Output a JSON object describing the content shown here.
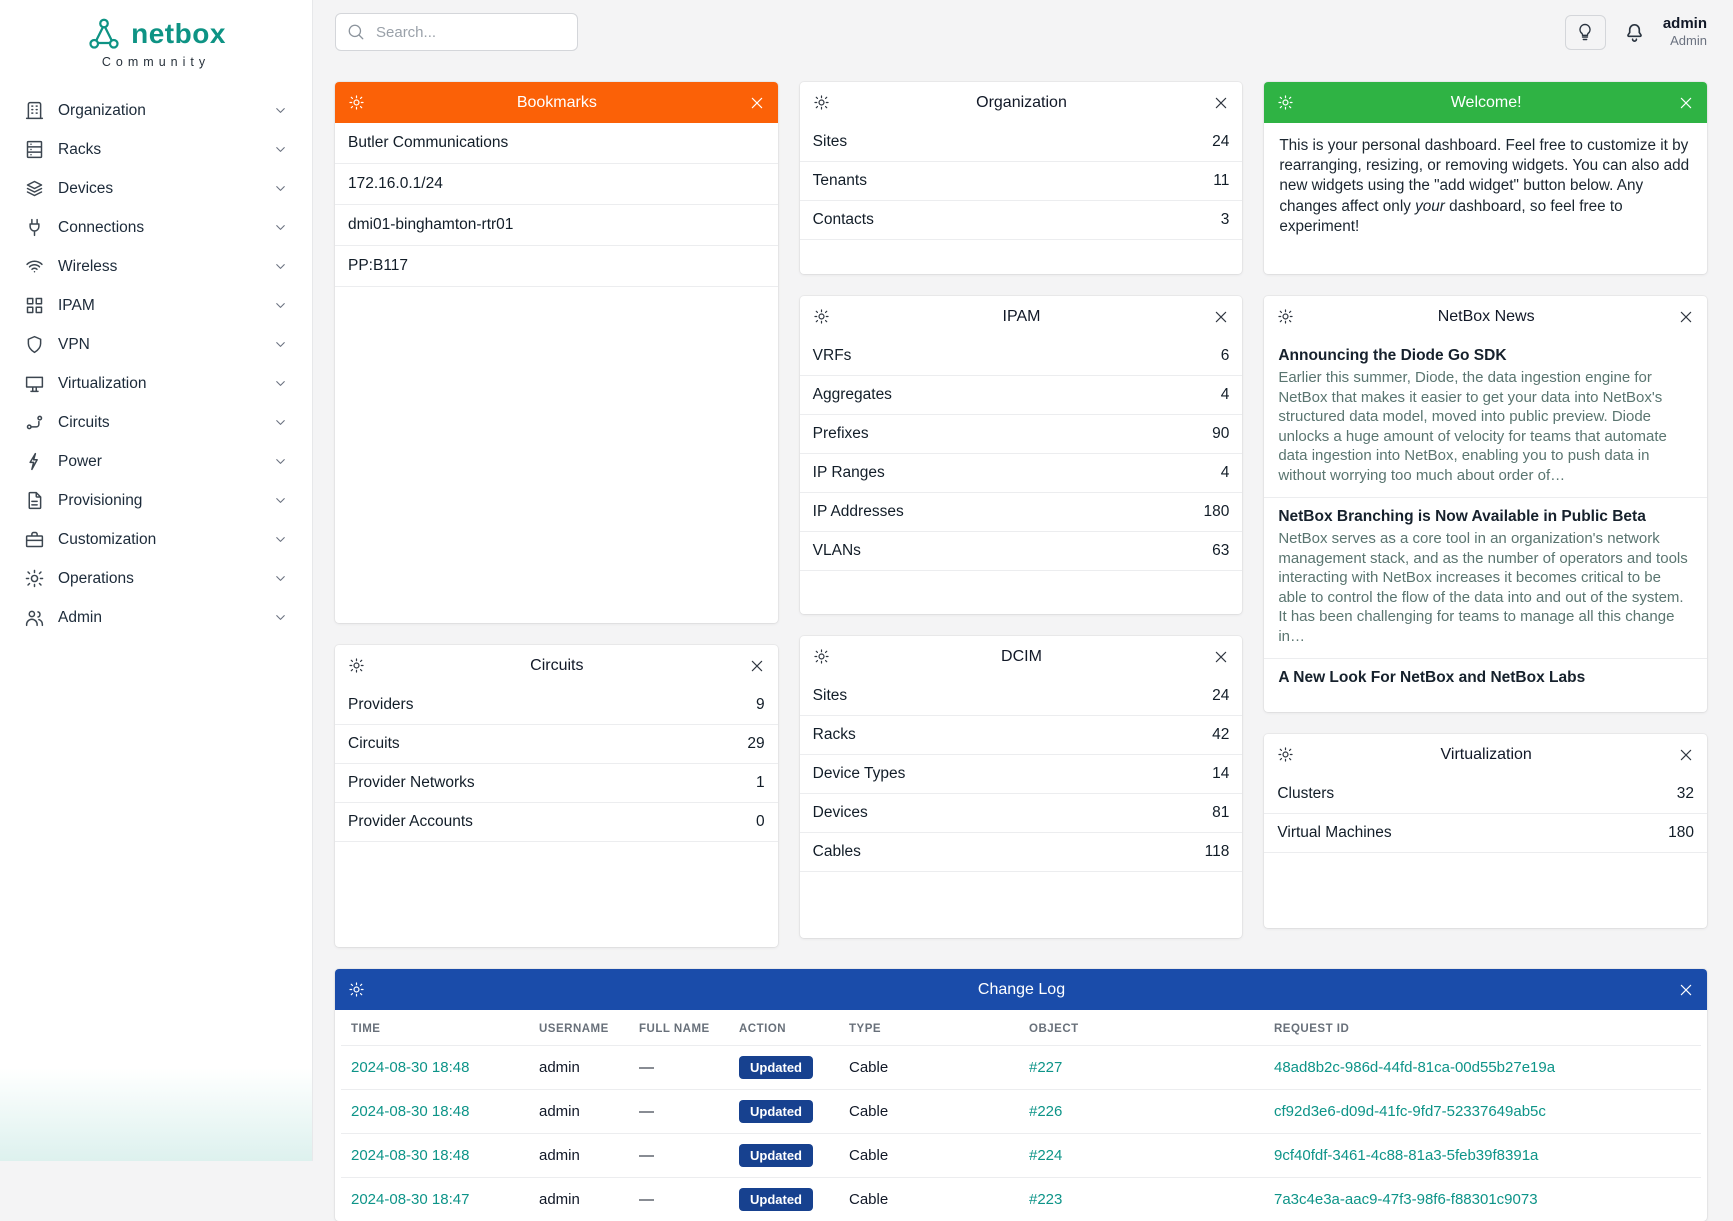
{
  "brand": {
    "name": "netbox",
    "subtitle": "Community"
  },
  "topbar": {
    "search_placeholder": "Search...",
    "user_name": "admin",
    "user_role": "Admin"
  },
  "sidebar": {
    "items": [
      {
        "label": "Organization"
      },
      {
        "label": "Racks"
      },
      {
        "label": "Devices"
      },
      {
        "label": "Connections"
      },
      {
        "label": "Wireless"
      },
      {
        "label": "IPAM"
      },
      {
        "label": "VPN"
      },
      {
        "label": "Virtualization"
      },
      {
        "label": "Circuits"
      },
      {
        "label": "Power"
      },
      {
        "label": "Provisioning"
      },
      {
        "label": "Customization"
      },
      {
        "label": "Operations"
      },
      {
        "label": "Admin"
      }
    ]
  },
  "colors": {
    "accent_teal": "#0e9384",
    "link_teal": "#0d9488",
    "bookmarks_header_orange": "#fb6107",
    "welcome_header_green": "#2fb344",
    "changelog_header_blue": "#1a4caa",
    "updated_badge_blue": "#17418f"
  },
  "widgets": {
    "bookmarks": {
      "title": "Bookmarks",
      "items": [
        "Butler Communications",
        "172.16.0.1/24",
        "dmi01-binghamton-rtr01",
        "PP:B117"
      ]
    },
    "organization": {
      "title": "Organization",
      "rows": [
        {
          "label": "Sites",
          "value": "24"
        },
        {
          "label": "Tenants",
          "value": "11"
        },
        {
          "label": "Contacts",
          "value": "3"
        }
      ]
    },
    "welcome": {
      "title": "Welcome!",
      "text_start": "This is your personal dashboard. Feel free to customize it by rearranging, resizing, or removing widgets. You can also add new widgets using the \"add widget\" button below. Any changes affect only ",
      "emphasis": "your",
      "text_end": " dashboard, so feel free to experiment!"
    },
    "ipam": {
      "title": "IPAM",
      "rows": [
        {
          "label": "VRFs",
          "value": "6"
        },
        {
          "label": "Aggregates",
          "value": "4"
        },
        {
          "label": "Prefixes",
          "value": "90"
        },
        {
          "label": "IP Ranges",
          "value": "4"
        },
        {
          "label": "IP Addresses",
          "value": "180"
        },
        {
          "label": "VLANs",
          "value": "63"
        }
      ]
    },
    "news": {
      "title": "NetBox News",
      "articles": [
        {
          "title": "Announcing the Diode Go SDK",
          "body": "Earlier this summer, Diode, the data ingestion engine for NetBox that makes it easier to get your data into NetBox's structured data model, moved into public preview. Diode unlocks a huge amount of velocity for teams that automate data ingestion into NetBox, enabling you to push data in without worrying too much about order of…"
        },
        {
          "title": "NetBox Branching is Now Available in Public Beta",
          "body": "NetBox serves as a core tool in an organization's network management stack, and as the number of operators and tools interacting with NetBox increases it becomes critical to be able to control the flow of the data into and out of the system. It has been challenging for teams to manage all this change in…"
        },
        {
          "title": "A New Look For NetBox and NetBox Labs",
          "body": ""
        }
      ]
    },
    "circuits": {
      "title": "Circuits",
      "rows": [
        {
          "label": "Providers",
          "value": "9"
        },
        {
          "label": "Circuits",
          "value": "29"
        },
        {
          "label": "Provider Networks",
          "value": "1"
        },
        {
          "label": "Provider Accounts",
          "value": "0"
        }
      ]
    },
    "dcim": {
      "title": "DCIM",
      "rows": [
        {
          "label": "Sites",
          "value": "24"
        },
        {
          "label": "Racks",
          "value": "42"
        },
        {
          "label": "Device Types",
          "value": "14"
        },
        {
          "label": "Devices",
          "value": "81"
        },
        {
          "label": "Cables",
          "value": "118"
        }
      ]
    },
    "virtualization": {
      "title": "Virtualization",
      "rows": [
        {
          "label": "Clusters",
          "value": "32"
        },
        {
          "label": "Virtual Machines",
          "value": "180"
        }
      ]
    },
    "changelog": {
      "title": "Change Log",
      "columns": [
        "TIME",
        "USERNAME",
        "FULL NAME",
        "ACTION",
        "TYPE",
        "OBJECT",
        "REQUEST ID"
      ],
      "rows": [
        {
          "time": "2024-08-30 18:48",
          "username": "admin",
          "full_name": "—",
          "action": "Updated",
          "type": "Cable",
          "object": "#227",
          "request_id": "48ad8b2c-986d-44fd-81ca-00d55b27e19a"
        },
        {
          "time": "2024-08-30 18:48",
          "username": "admin",
          "full_name": "—",
          "action": "Updated",
          "type": "Cable",
          "object": "#226",
          "request_id": "cf92d3e6-d09d-41fc-9fd7-52337649ab5c"
        },
        {
          "time": "2024-08-30 18:48",
          "username": "admin",
          "full_name": "—",
          "action": "Updated",
          "type": "Cable",
          "object": "#224",
          "request_id": "9cf40fdf-3461-4c88-81a3-5feb39f8391a"
        },
        {
          "time": "2024-08-30 18:47",
          "username": "admin",
          "full_name": "—",
          "action": "Updated",
          "type": "Cable",
          "object": "#223",
          "request_id": "7a3c4e3a-aac9-47f3-98f6-f88301c9073"
        }
      ]
    }
  }
}
